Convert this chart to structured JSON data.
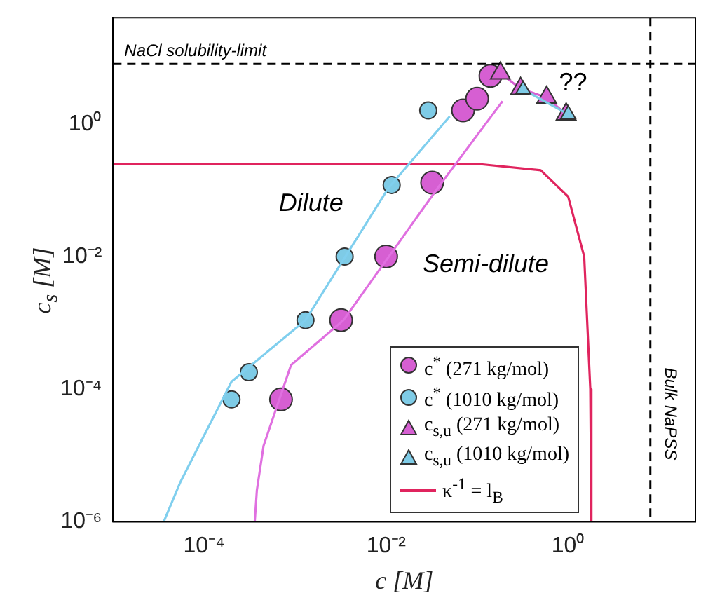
{
  "chart_data": {
    "type": "scatter",
    "xlabel": "c [M]",
    "ylabel": "c$_{s}$ [M]",
    "log": "xy",
    "grid": false,
    "legend": "bottom right",
    "xlim": [
      1e-05,
      25
    ],
    "ylim": [
      1e-06,
      40
    ],
    "xticks": [
      {
        "value": 0.0001,
        "label": "10⁻⁴"
      },
      {
        "value": 0.01,
        "label": "10⁻²"
      },
      {
        "value": 1,
        "label": "10⁰"
      }
    ],
    "yticks": [
      {
        "value": 1e-06,
        "label": "10⁻⁶"
      },
      {
        "value": 0.0001,
        "label": "10⁻⁴"
      },
      {
        "value": 0.01,
        "label": "10⁻²"
      },
      {
        "value": 1,
        "label": "10⁰"
      }
    ],
    "series": [
      {
        "name": "c$^{*}$ (271 kg/mol)",
        "type": "scatter",
        "marker": "circle",
        "color": "#d65fd2",
        "x": [
          0.0007,
          0.0032,
          0.01,
          0.032,
          0.07,
          0.1,
          0.14
        ],
        "values": [
          7e-05,
          0.0011,
          0.01,
          0.13,
          1.6,
          2.4,
          5.3
        ]
      },
      {
        "name": "c$^{*}$ (1010 kg/mol)",
        "type": "scatter",
        "marker": "circle",
        "color": "#7ecbe6",
        "x": [
          0.0002,
          0.00031,
          0.0013,
          0.0035,
          0.0115,
          0.029
        ],
        "values": [
          7e-05,
          0.00018,
          0.0011,
          0.01,
          0.12,
          1.6
        ]
      },
      {
        "name": "c$_{s,u}$ (271 kg/mol)",
        "type": "line",
        "marker": "triangle",
        "color": "#d65fd2",
        "x": [
          0.18,
          0.3,
          0.58,
          0.95
        ],
        "values": [
          5.8,
          3.4,
          2.5,
          1.4
        ]
      },
      {
        "name": "c$_{s,u}$ (1010 kg/mol)",
        "type": "line",
        "marker": "triangle",
        "color": "#7ecbe6",
        "x": [
          0.32,
          1.0
        ],
        "values": [
          3.3,
          1.4
        ]
      },
      {
        "name": "κ$^{-1}$ = l$_{B}$",
        "type": "line",
        "marker": "none",
        "color": "#e0245e",
        "x": [
          1e-05,
          0.1,
          0.5,
          1,
          1.5,
          1.75,
          1.8
        ],
        "values": [
          0.25,
          0.25,
          0.2,
          0.08,
          0.01,
          0.0001,
          1e-06
        ]
      },
      {
        "type": "line",
        "marker": "none",
        "color": "#80cfee",
        "x": [
          3.6e-05,
          5.5e-05,
          0.0001,
          0.0002,
          0.0013,
          0.0107,
          0.05
        ],
        "values": [
          1e-06,
          4e-06,
          2e-05,
          0.00013,
          0.0011,
          0.11,
          1.3
        ]
      },
      {
        "type": "line",
        "marker": "none",
        "color": "#e070e0",
        "x": [
          0.00036,
          0.00038,
          0.00045,
          0.0009,
          0.0034,
          0.039,
          0.19
        ],
        "values": [
          1e-06,
          3e-06,
          1.4e-05,
          0.00023,
          0.0011,
          0.12,
          2.2
        ]
      }
    ],
    "ref_lines": [
      {
        "axis": "y",
        "value": 8,
        "label": "NaCl solubility-limit",
        "line_style": "dashed"
      },
      {
        "axis": "x",
        "value": 8,
        "label": "Bulk NaPSS",
        "line_style": "dashed"
      }
    ],
    "annotations": [
      "Dilute",
      "Semi-dilute",
      "??"
    ]
  }
}
